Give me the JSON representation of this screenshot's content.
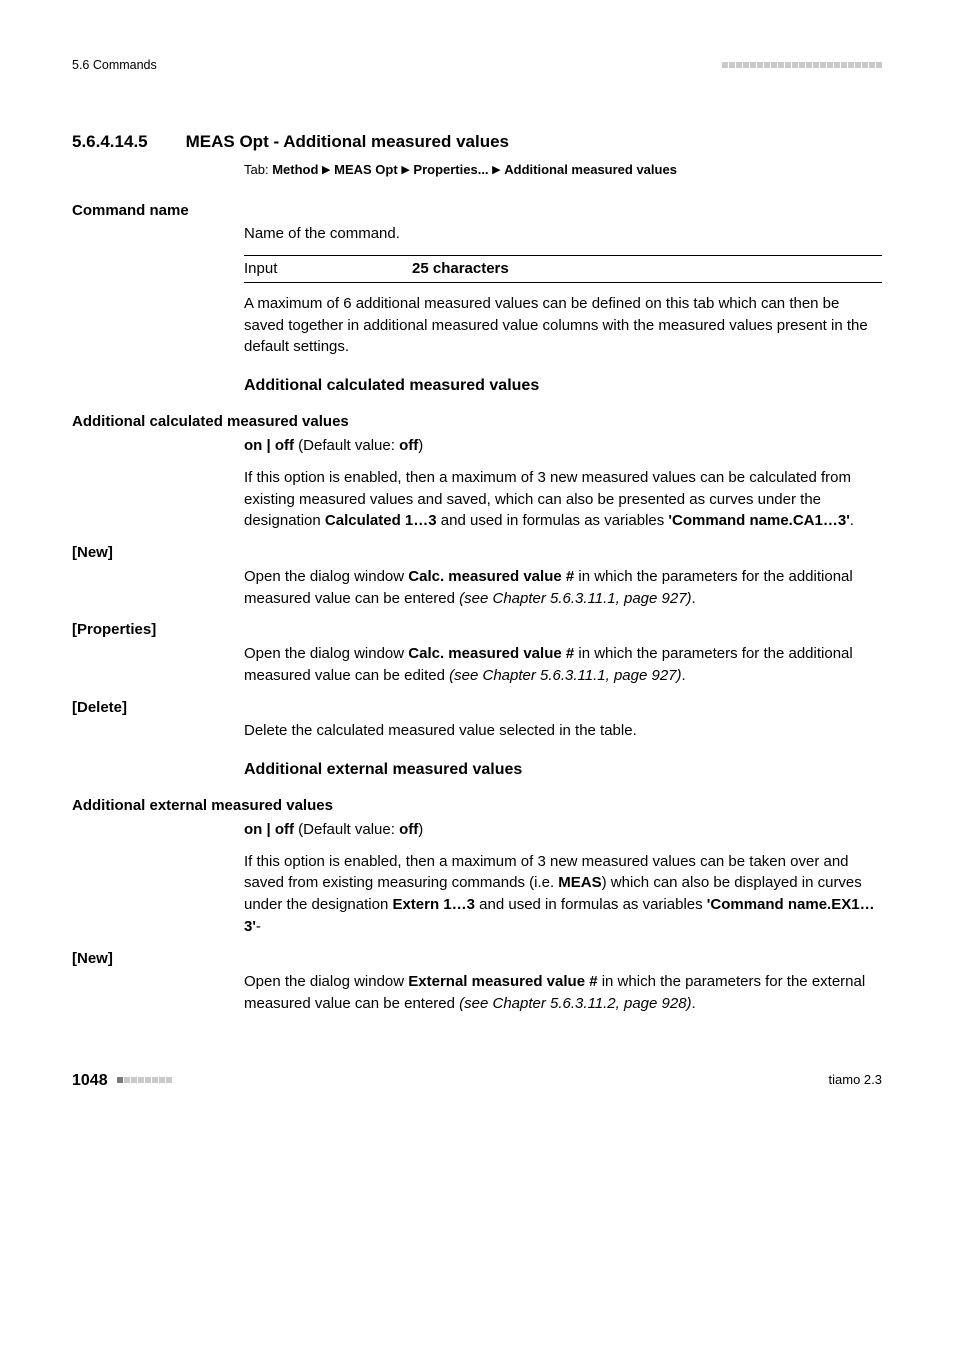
{
  "header": {
    "left": "5.6 Commands"
  },
  "section": {
    "number": "5.6.4.14.5",
    "title": "MEAS Opt - Additional measured values",
    "tab_prefix": "Tab: ",
    "tab_path": [
      "Method",
      "MEAS Opt",
      "Properties...",
      "Additional measured values"
    ]
  },
  "cmd_name": {
    "label": "Command name",
    "desc": "Name of the command.",
    "spec_label": "Input",
    "spec_value": "25 characters",
    "para": "A maximum of 6 additional measured values can be defined on this tab which can then be saved together in additional measured value columns with the measured values present in the default settings."
  },
  "calc": {
    "heading": "Additional calculated measured values",
    "param_label": "Additional calculated measured values",
    "onoff_pre": "on | off",
    "onoff_mid": " (Default value: ",
    "onoff_val": "off",
    "onoff_post": ")",
    "para_pre": "If this option is enabled, then a maximum of 3 new measured values can be calculated from existing measured values and saved, which can also be presented as curves under the designation ",
    "para_bold1": "Calculated 1…3",
    "para_mid": " and used in formulas as variables ",
    "para_bold2": "'Command name.CA1…3'",
    "para_post": ".",
    "new_label": "[New]",
    "new_pre": "Open the dialog window ",
    "new_bold": "Calc. measured value #",
    "new_mid": " in which the parameters for the additional measured value can be entered ",
    "new_ital": "(see Chapter 5.6.3.11.1, page 927)",
    "new_post": ".",
    "prop_label": "[Properties]",
    "prop_pre": "Open the dialog window ",
    "prop_bold": "Calc. measured value #",
    "prop_mid": " in which the parameters for the additional measured value can be edited ",
    "prop_ital": "(see Chapter 5.6.3.11.1, page 927)",
    "prop_post": ".",
    "del_label": "[Delete]",
    "del_text": "Delete the calculated measured value selected in the table."
  },
  "ext": {
    "heading": "Additional external measured values",
    "param_label": "Additional external measured values",
    "onoff_pre": "on | off",
    "onoff_mid": " (Default value: ",
    "onoff_val": "off",
    "onoff_post": ")",
    "para_pre": "If this option is enabled, then a maximum of 3 new measured values can be taken over and saved from existing measuring commands (i.e. ",
    "para_bold1": "MEAS",
    "para_mid1": ") which can also be displayed in curves under the designation ",
    "para_bold2": "Extern 1…3",
    "para_mid2": " and used in formulas as variables ",
    "para_bold3": "'Command name.EX1…3'",
    "para_post": "-",
    "new_label": "[New]",
    "new_pre": "Open the dialog window ",
    "new_bold": "External measured value #",
    "new_mid": " in which the parameters for the external measured value can be entered ",
    "new_ital": "(see Chapter 5.6.3.11.2, page 928)",
    "new_post": "."
  },
  "footer": {
    "page": "1048",
    "right": "tiamo 2.3"
  },
  "style": {
    "header_dots": 23,
    "footer_dots_total": 8,
    "footer_dots_dark": 1
  }
}
